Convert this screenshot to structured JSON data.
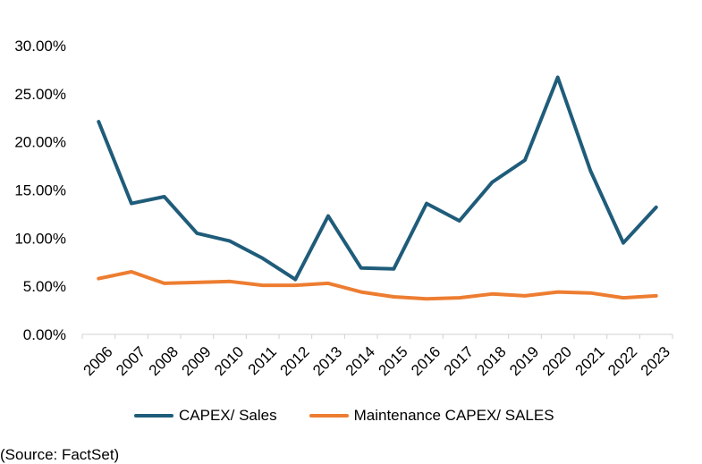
{
  "chart_data": {
    "type": "line",
    "title": "",
    "xlabel": "",
    "ylabel": "",
    "ylim": [
      0,
      0.3
    ],
    "yticks": [
      0,
      0.05,
      0.1,
      0.15,
      0.2,
      0.25,
      0.3
    ],
    "ytick_labels": [
      "0.00%",
      "5.00%",
      "10.00%",
      "15.00%",
      "20.00%",
      "25.00%",
      "30.00%"
    ],
    "categories": [
      "2006",
      "2007",
      "2008",
      "2009",
      "2010",
      "2011",
      "2012",
      "2013",
      "2014",
      "2015",
      "2016",
      "2017",
      "2018",
      "2019",
      "2020",
      "2021",
      "2022",
      "2023"
    ],
    "series": [
      {
        "name": "CAPEX/ Sales",
        "color": "#1f5c7a",
        "values": [
          0.221,
          0.136,
          0.143,
          0.105,
          0.097,
          0.079,
          0.057,
          0.123,
          0.069,
          0.068,
          0.136,
          0.118,
          0.158,
          0.181,
          0.267,
          0.17,
          0.095,
          0.132
        ]
      },
      {
        "name": "Maintenance CAPEX/ SALES",
        "color": "#ed7d31",
        "values": [
          0.058,
          0.065,
          0.053,
          0.054,
          0.055,
          0.051,
          0.051,
          0.053,
          0.044,
          0.039,
          0.037,
          0.038,
          0.042,
          0.04,
          0.044,
          0.043,
          0.038,
          0.04
        ]
      }
    ],
    "grid": false,
    "legend": "bottom"
  },
  "source_note": "(Source: FactSet)"
}
